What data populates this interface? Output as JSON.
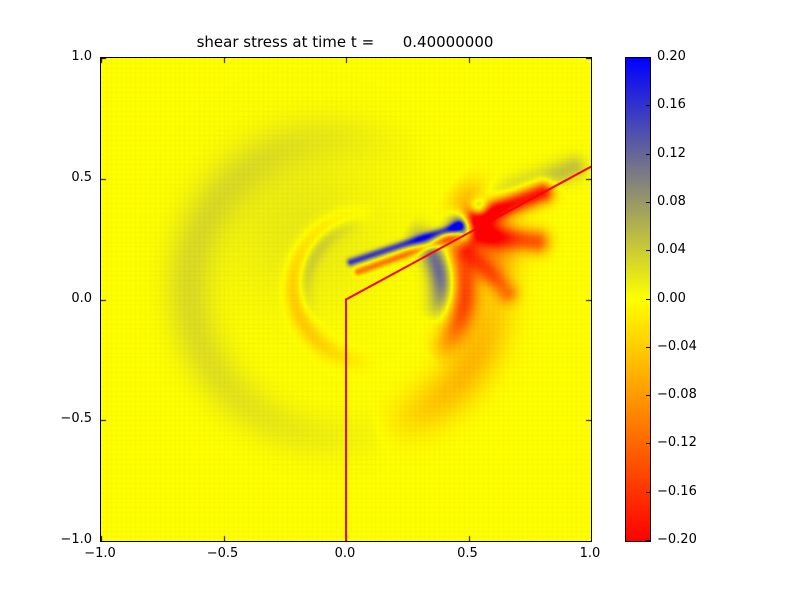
{
  "figure": {
    "background_color": "#ffffff"
  },
  "chart_data": {
    "type": "heatmap",
    "title": "shear stress at time t =      0.40000000",
    "xlabel": "",
    "ylabel": "",
    "xlim": [
      -1.0,
      1.0
    ],
    "ylim": [
      -1.0,
      1.0
    ],
    "grid": false,
    "x": {
      "tick_values": [
        -1.0,
        -0.5,
        0.0,
        0.5,
        1.0
      ],
      "ticks": [
        "−1.0",
        "−0.5",
        "0.0",
        "0.5",
        "1.0"
      ]
    },
    "y": {
      "tick_values": [
        -1.0,
        -0.5,
        0.0,
        0.5,
        1.0
      ],
      "ticks": [
        "−1.0",
        "−0.5",
        "0.0",
        "0.5",
        "1.0"
      ]
    },
    "background_value": 0.0,
    "colormap": [
      {
        "value": -0.2,
        "color": "#ff0000"
      },
      {
        "value": 0.0,
        "color": "#ffff00"
      },
      {
        "value": 0.2,
        "color": "#0000ff"
      }
    ],
    "colorbar": {
      "position": "right",
      "tick_values": [
        0.2,
        0.16,
        0.12,
        0.08,
        0.04,
        0.0,
        -0.04,
        -0.08,
        -0.12,
        -0.16,
        -0.2
      ],
      "ticks": [
        "0.20",
        "0.16",
        "0.12",
        "0.08",
        "0.04",
        "0.00",
        "−0.04",
        "−0.08",
        "−0.12",
        "−0.16",
        "−0.20"
      ]
    },
    "overlay_line": {
      "color": "#ff0000",
      "width": 2,
      "points": [
        [
          0.0,
          -1.0
        ],
        [
          0.0,
          0.0
        ],
        [
          1.0,
          0.55
        ]
      ]
    },
    "mesh": {
      "cells": 100,
      "alpha": 0.025
    },
    "features": [
      {
        "kind": "blob",
        "cx": -0.18,
        "cy": 0.3,
        "s": 0.24,
        "amp": 0.016
      },
      {
        "kind": "ring",
        "cx": -0.02,
        "cy": 0.05,
        "r": 0.62,
        "w": 0.1,
        "amp": 0.026,
        "a0": 55,
        "a1": 300
      },
      {
        "kind": "ring",
        "cx": 0.0,
        "cy": 0.05,
        "r": 0.62,
        "w": 0.09,
        "amp": -0.1,
        "a0": 0,
        "a1": 45
      },
      {
        "kind": "ring",
        "cx": 0.0,
        "cy": 0.05,
        "r": 0.6,
        "w": 0.1,
        "amp": -0.055,
        "a0": -80,
        "a1": 15
      },
      {
        "kind": "ring",
        "cx": 0.1,
        "cy": 0.05,
        "r": 0.31,
        "w": 0.04,
        "amp": -0.05,
        "a0": 85,
        "a1": 275
      },
      {
        "kind": "ring",
        "cx": 0.1,
        "cy": 0.05,
        "r": 0.27,
        "w": 0.035,
        "amp": 0.035,
        "a0": 95,
        "a1": 215
      },
      {
        "kind": "ring",
        "cx": 0.1,
        "cy": 0.05,
        "r": 0.29,
        "w": 0.05,
        "amp": 0.12,
        "a0": -30,
        "a1": 60
      },
      {
        "kind": "ring",
        "cx": 0.1,
        "cy": 0.05,
        "r": 0.385,
        "w": 0.055,
        "amp": -0.14,
        "a0": -50,
        "a1": 42
      },
      {
        "kind": "streak",
        "x1": 0.02,
        "y1": 0.155,
        "x2": 0.46,
        "y2": 0.305,
        "w": 0.016,
        "amp": 0.15
      },
      {
        "kind": "streak",
        "x1": 0.05,
        "y1": 0.115,
        "x2": 0.46,
        "y2": 0.265,
        "w": 0.016,
        "amp": -0.11
      },
      {
        "kind": "blob",
        "cx": 0.47,
        "cy": 0.3,
        "s": 0.034,
        "amp": 0.22
      },
      {
        "kind": "blob",
        "cx": 0.545,
        "cy": 0.375,
        "s": 0.028,
        "amp": 0.19
      },
      {
        "kind": "streak",
        "x1": 0.53,
        "y1": 0.34,
        "x2": 0.8,
        "y2": 0.445,
        "w": 0.045,
        "amp": -0.2
      },
      {
        "kind": "streak",
        "x1": 0.54,
        "y1": 0.27,
        "x2": 0.78,
        "y2": 0.24,
        "w": 0.05,
        "amp": -0.13
      },
      {
        "kind": "streak",
        "x1": 0.5,
        "y1": 0.2,
        "x2": 0.66,
        "y2": 0.03,
        "w": 0.045,
        "amp": -0.09
      },
      {
        "kind": "streak",
        "x1": 0.6,
        "y1": 0.42,
        "x2": 0.93,
        "y2": 0.545,
        "w": 0.05,
        "amp": 0.045
      }
    ]
  }
}
